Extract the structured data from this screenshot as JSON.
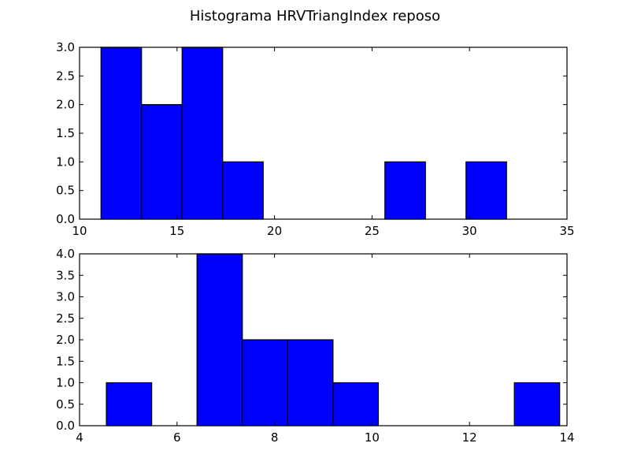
{
  "figure": {
    "title": "Histograma HRVTriangIndex reposo"
  },
  "style": {
    "bar_color": "#0000ff",
    "edge_color": "#000000",
    "background": "#ffffff"
  },
  "chart_data": [
    {
      "type": "bar",
      "subtype": "histogram",
      "title": "",
      "xlabel": "",
      "ylabel": "",
      "xlim": [
        10,
        35
      ],
      "ylim": [
        0,
        3
      ],
      "xticks": [
        10,
        15,
        20,
        25,
        30,
        35
      ],
      "yticks": [
        0.0,
        0.5,
        1.0,
        1.5,
        2.0,
        2.5,
        3.0
      ],
      "xtick_labels": [
        "10",
        "15",
        "20",
        "25",
        "30",
        "35"
      ],
      "ytick_labels": [
        "0.0",
        "0.5",
        "1.0",
        "1.5",
        "2.0",
        "2.5",
        "3.0"
      ],
      "bin_edges": [
        11.1,
        13.18,
        15.26,
        17.34,
        19.42,
        21.5,
        23.58,
        25.66,
        27.74,
        29.82,
        31.9
      ],
      "counts": [
        3,
        2,
        3,
        1,
        0,
        0,
        0,
        1,
        0,
        1
      ],
      "grid": false
    },
    {
      "type": "bar",
      "subtype": "histogram",
      "title": "",
      "xlabel": "",
      "ylabel": "",
      "xlim": [
        4,
        14
      ],
      "ylim": [
        0,
        4
      ],
      "xticks": [
        4,
        6,
        8,
        10,
        12,
        14
      ],
      "yticks": [
        0.0,
        0.5,
        1.0,
        1.5,
        2.0,
        2.5,
        3.0,
        3.5,
        4.0
      ],
      "xtick_labels": [
        "4",
        "6",
        "8",
        "10",
        "12",
        "14"
      ],
      "ytick_labels": [
        "0.0",
        "0.5",
        "1.0",
        "1.5",
        "2.0",
        "2.5",
        "3.0",
        "3.5",
        "4.0"
      ],
      "bin_edges": [
        4.55,
        5.48,
        6.41,
        7.34,
        8.27,
        9.2,
        10.13,
        11.06,
        11.99,
        12.92,
        13.85
      ],
      "counts": [
        1,
        0,
        4,
        2,
        2,
        1,
        0,
        0,
        0,
        1
      ],
      "grid": false
    }
  ]
}
